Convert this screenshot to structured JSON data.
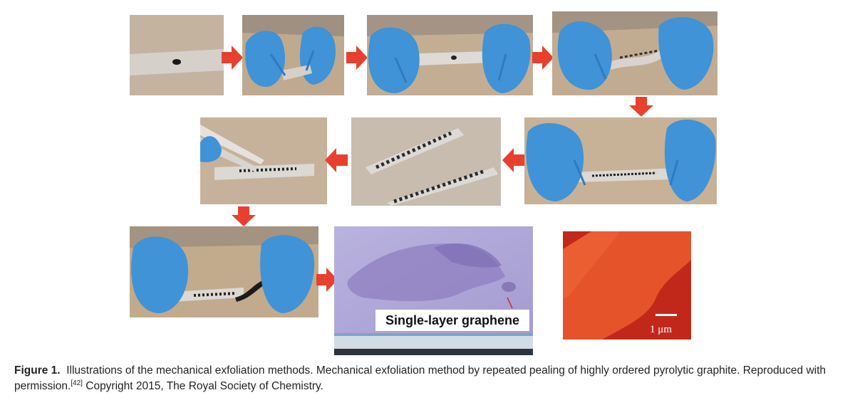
{
  "figure": {
    "label": "Figure 1.",
    "caption_text": "Illustrations of the mechanical exfoliation methods. Mechanical exfoliation method by repeated pealing of highly ordered pyrolytic graphite. Reproduced with permission.",
    "reference": "[42]",
    "copyright": "Copyright 2015, The Royal Society of Chemistry."
  },
  "annotations": {
    "graphene_label": "Single-layer graphene",
    "scale_bar": "1 μm"
  },
  "colors": {
    "arrow": "#e8402e",
    "tape_background": "#c9b49a",
    "glove": "#3f93d6",
    "afm_red": "#c2281a",
    "substrate_purple": "#9f8fc8"
  }
}
